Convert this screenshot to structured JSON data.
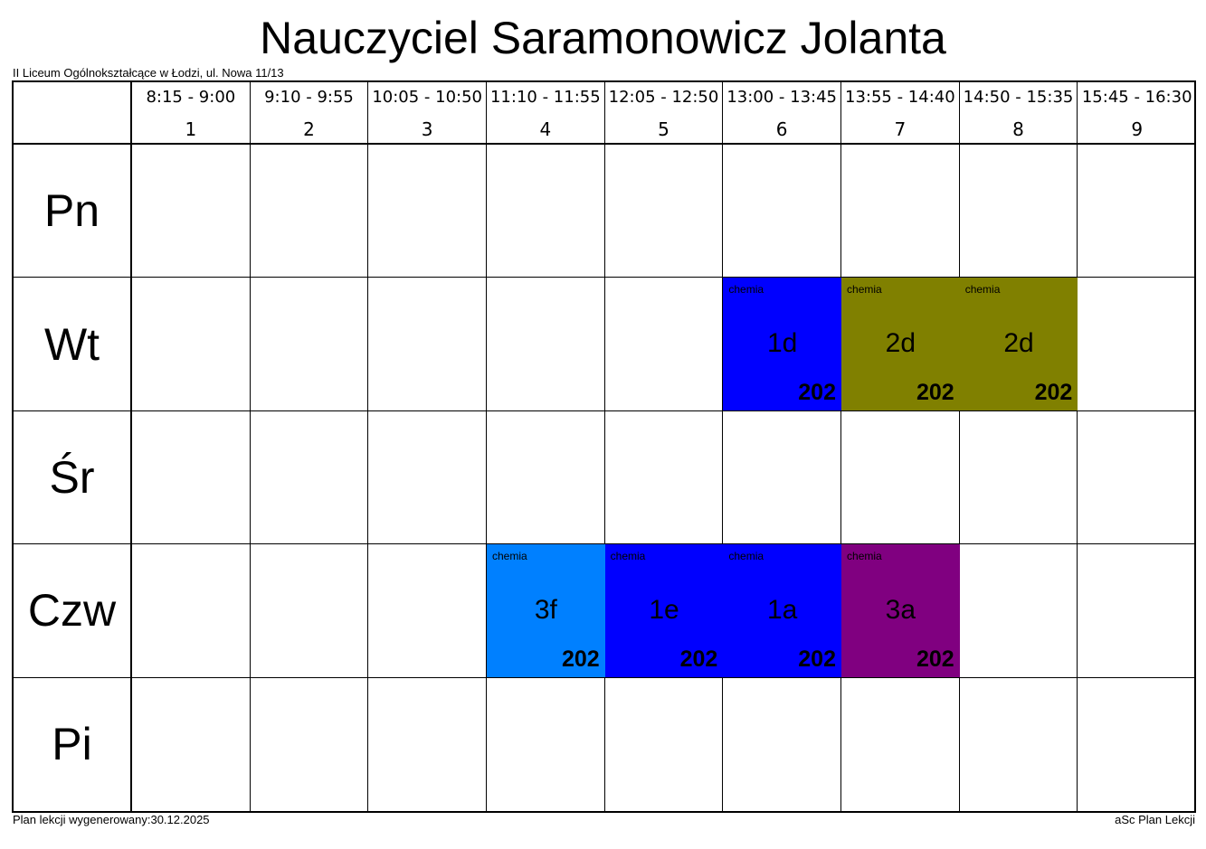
{
  "title": "Nauczyciel Saramonowicz Jolanta",
  "school": "II Liceum Ogólnokształcące w Łodzi, ul. Nowa 11/13",
  "footer": {
    "generated": "Plan lekcji wygenerowany:30.12.2025",
    "app": "aSc Plan Lekcji"
  },
  "periods": [
    {
      "num": "1",
      "time": "8:15 - 9:00"
    },
    {
      "num": "2",
      "time": "9:10 - 9:55"
    },
    {
      "num": "3",
      "time": "10:05 - 10:50"
    },
    {
      "num": "4",
      "time": "11:10 - 11:55"
    },
    {
      "num": "5",
      "time": "12:05 - 12:50"
    },
    {
      "num": "6",
      "time": "13:00 - 13:45"
    },
    {
      "num": "7",
      "time": "13:55 - 14:40"
    },
    {
      "num": "8",
      "time": "14:50 - 15:35"
    },
    {
      "num": "9",
      "time": "15:45 - 16:30"
    }
  ],
  "days": [
    "Pn",
    "Wt",
    "Śr",
    "Czw",
    "Pi"
  ],
  "lessons": [
    {
      "day": 1,
      "period": 6,
      "subject": "chemia",
      "class": "1d",
      "room": "202",
      "color": "#0000FF"
    },
    {
      "day": 1,
      "period": 7,
      "subject": "chemia",
      "class": "2d",
      "room": "202",
      "color": "#808000"
    },
    {
      "day": 1,
      "period": 8,
      "subject": "chemia",
      "class": "2d",
      "room": "202",
      "color": "#808000"
    },
    {
      "day": 3,
      "period": 4,
      "subject": "chemia",
      "class": "3f",
      "room": "202",
      "color": "#0080FF"
    },
    {
      "day": 3,
      "period": 5,
      "subject": "chemia",
      "class": "1e",
      "room": "202",
      "color": "#0000FF"
    },
    {
      "day": 3,
      "period": 6,
      "subject": "chemia",
      "class": "1a",
      "room": "202",
      "color": "#0000FF"
    },
    {
      "day": 3,
      "period": 7,
      "subject": "chemia",
      "class": "3a",
      "room": "202",
      "color": "#800080"
    }
  ]
}
